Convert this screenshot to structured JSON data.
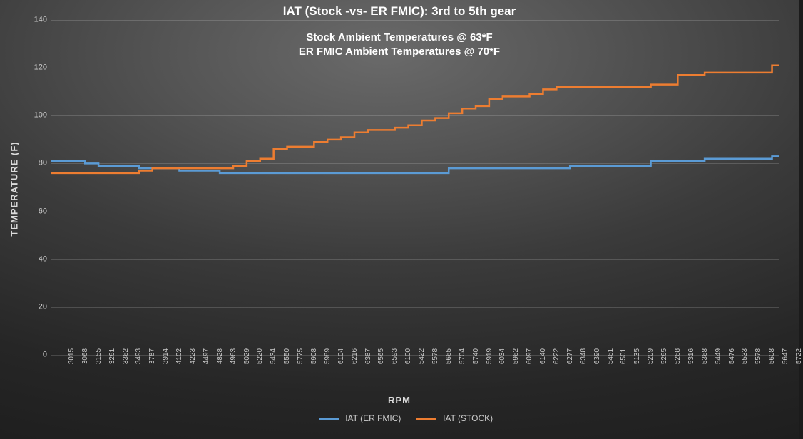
{
  "chart": {
    "type": "line-step",
    "title": "IAT (Stock -vs- ER FMIC): 3rd to 5th gear",
    "title_fontsize": 17,
    "subtitle1": "Stock Ambient Temperatures @ 63*F",
    "subtitle2": "ER FMIC Ambient Temperatures @ 70*F",
    "subtitle_fontsize": 15,
    "xlabel": "RPM",
    "ylabel": "TEMPERATURE (F)",
    "axis_label_fontsize": 13,
    "tick_fontsize": 11,
    "background": "radial-dark-gray",
    "grid_color": "rgba(255,255,255,0.16)",
    "text_color": "#cccccc",
    "title_color": "#ffffff",
    "ylim": [
      0,
      140
    ],
    "ytick_step": 20,
    "yticks": [
      0,
      20,
      40,
      60,
      80,
      100,
      120,
      140
    ],
    "x_categories": [
      "3015",
      "3068",
      "3155",
      "3261",
      "3362",
      "3493",
      "3787",
      "3914",
      "4102",
      "4223",
      "4497",
      "4828",
      "4963",
      "5029",
      "5220",
      "5434",
      "5550",
      "5775",
      "5908",
      "5989",
      "6104",
      "6216",
      "6387",
      "6565",
      "6593",
      "6100",
      "5422",
      "5578",
      "5665",
      "5704",
      "5740",
      "5919",
      "6034",
      "5962",
      "6097",
      "6140",
      "6222",
      "6277",
      "6348",
      "6390",
      "5461",
      "6501",
      "5135",
      "5209",
      "5265",
      "5268",
      "5316",
      "5368",
      "5449",
      "5476",
      "5533",
      "5578",
      "5608",
      "5647",
      "5722"
    ],
    "series": [
      {
        "name": "IAT (ER FMIC)",
        "color": "#5b9bd5",
        "line_width": 2.5,
        "values": [
          81,
          81,
          81,
          80,
          79,
          79,
          79,
          78,
          78,
          78,
          77,
          77,
          77,
          76,
          76,
          76,
          76,
          76,
          76,
          76,
          76,
          76,
          76,
          76,
          76,
          76,
          76,
          76,
          76,
          76,
          78,
          78,
          78,
          78,
          78,
          78,
          78,
          78,
          78,
          79,
          79,
          79,
          79,
          79,
          79,
          81,
          81,
          81,
          81,
          82,
          82,
          82,
          82,
          82,
          83
        ]
      },
      {
        "name": "IAT (STOCK)",
        "color": "#ed7d31",
        "line_width": 2.5,
        "values": [
          76,
          76,
          76,
          76,
          76,
          76,
          76,
          77,
          78,
          78,
          78,
          78,
          78,
          78,
          79,
          81,
          82,
          86,
          87,
          87,
          89,
          90,
          91,
          93,
          94,
          94,
          95,
          96,
          98,
          99,
          101,
          103,
          104,
          107,
          108,
          108,
          109,
          111,
          112,
          112,
          112,
          112,
          112,
          112,
          112,
          113,
          113,
          117,
          117,
          118,
          118,
          118,
          118,
          118,
          121
        ]
      }
    ],
    "legend_position": "bottom-center"
  }
}
